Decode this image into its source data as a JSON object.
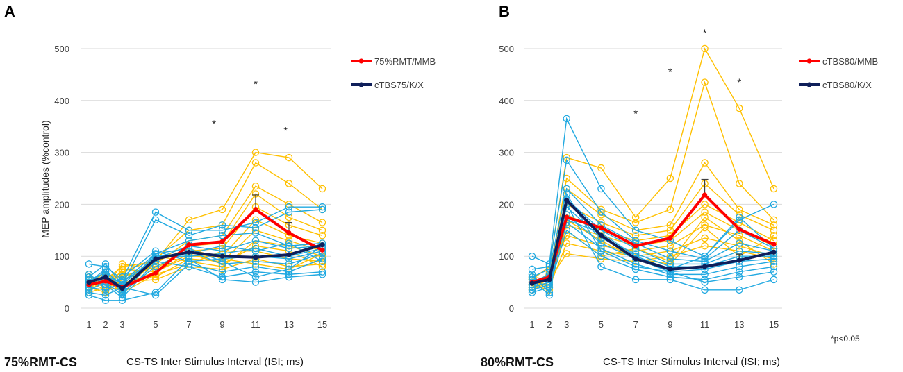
{
  "chart_data": [
    {
      "panel_label": "A",
      "type": "line",
      "ylabel": "MEP amplitudes (%control)",
      "x_title": "CS-TS Inter Stimulus Interval (ISI; ms)",
      "condition_label": "75%RMT-CS",
      "ylim": [
        0,
        500
      ],
      "yticks": [
        "0",
        "100",
        "200",
        "300",
        "400",
        "500"
      ],
      "grid": "horizontal",
      "legend_position": "right",
      "x": [
        1,
        2,
        3,
        5,
        7,
        9,
        11,
        13,
        15
      ],
      "x_tick_labels": [
        "1",
        "2",
        "3",
        "5",
        "7",
        "9",
        "11",
        "13",
        "15"
      ],
      "colors": {
        "mean_a": "#ff0000",
        "mean_b": "#0f1f5a",
        "indiv_a": "#ffc000",
        "indiv_b": "#21a9e1"
      },
      "series": [
        {
          "name": "75%RMT/MMB",
          "role": "mean_a",
          "values": [
            45,
            52,
            40,
            68,
            122,
            128,
            190,
            145,
            112
          ],
          "error": [
            null,
            null,
            null,
            null,
            null,
            null,
            28,
            20,
            null
          ]
        },
        {
          "name": "cTBS75/K/X",
          "role": "mean_b",
          "values": [
            50,
            60,
            38,
            95,
            108,
            100,
            98,
            103,
            122
          ],
          "error": [
            null,
            null,
            null,
            null,
            null,
            null,
            null,
            null,
            null
          ]
        }
      ],
      "individual_series": [
        {
          "group": "a",
          "values": [
            60,
            55,
            80,
            90,
            170,
            190,
            300,
            290,
            230
          ]
        },
        {
          "group": "a",
          "values": [
            45,
            50,
            70,
            95,
            150,
            160,
            280,
            240,
            190
          ]
        },
        {
          "group": "a",
          "values": [
            35,
            65,
            60,
            85,
            130,
            140,
            235,
            200,
            165
          ]
        },
        {
          "group": "a",
          "values": [
            55,
            40,
            85,
            75,
            120,
            125,
            220,
            175,
            150
          ]
        },
        {
          "group": "a",
          "values": [
            40,
            30,
            55,
            80,
            110,
            115,
            195,
            160,
            140
          ]
        },
        {
          "group": "a",
          "values": [
            30,
            60,
            45,
            70,
            100,
            100,
            170,
            140,
            125
          ]
        },
        {
          "group": "a",
          "values": [
            50,
            45,
            65,
            60,
            95,
            90,
            150,
            130,
            110
          ]
        },
        {
          "group": "a",
          "values": [
            65,
            35,
            40,
            100,
            90,
            80,
            130,
            120,
            100
          ]
        },
        {
          "group": "a",
          "values": [
            40,
            55,
            30,
            65,
            85,
            110,
            110,
            95,
            90
          ]
        },
        {
          "group": "a",
          "values": [
            30,
            40,
            50,
            55,
            80,
            75,
            95,
            80,
            85
          ]
        },
        {
          "group": "a",
          "values": [
            45,
            70,
            35,
            90,
            115,
            95,
            85,
            75,
            105
          ]
        },
        {
          "group": "a",
          "values": [
            50,
            35,
            75,
            70,
            105,
            85,
            120,
            110,
            80
          ]
        },
        {
          "group": "b",
          "values": [
            85,
            80,
            55,
            185,
            150,
            150,
            165,
            195,
            195
          ]
        },
        {
          "group": "b",
          "values": [
            60,
            85,
            45,
            170,
            140,
            160,
            155,
            185,
            190
          ]
        },
        {
          "group": "b",
          "values": [
            50,
            75,
            35,
            105,
            130,
            140,
            145,
            120,
            125
          ]
        },
        {
          "group": "b",
          "values": [
            40,
            60,
            50,
            95,
            120,
            110,
            130,
            115,
            120
          ]
        },
        {
          "group": "b",
          "values": [
            35,
            50,
            25,
            100,
            100,
            105,
            115,
            100,
            115
          ]
        },
        {
          "group": "b",
          "values": [
            55,
            40,
            60,
            110,
            90,
            95,
            100,
            95,
            110
          ]
        },
        {
          "group": "b",
          "values": [
            45,
            65,
            30,
            80,
            110,
            85,
            90,
            85,
            105
          ]
        },
        {
          "group": "b",
          "values": [
            30,
            25,
            40,
            25,
            85,
            70,
            80,
            70,
            95
          ]
        },
        {
          "group": "b",
          "values": [
            25,
            15,
            15,
            30,
            95,
            55,
            50,
            60,
            65
          ]
        },
        {
          "group": "b",
          "values": [
            65,
            45,
            20,
            90,
            80,
            60,
            70,
            65,
            70
          ]
        },
        {
          "group": "b",
          "values": [
            50,
            70,
            45,
            100,
            105,
            120,
            110,
            125,
            90
          ]
        },
        {
          "group": "b",
          "values": [
            40,
            35,
            50,
            105,
            115,
            90,
            60,
            75,
            120
          ]
        }
      ],
      "annotations": [
        {
          "text": "*",
          "x": 8.5,
          "y": 355
        },
        {
          "text": "*",
          "x": 11,
          "y": 432
        },
        {
          "text": "*",
          "x": 12.8,
          "y": 342
        }
      ],
      "note": ""
    },
    {
      "panel_label": "B",
      "type": "line",
      "ylabel": "",
      "x_title": "CS-TS Inter Stimulus Interval (ISI; ms)",
      "condition_label": "80%RMT-CS",
      "ylim": [
        0,
        500
      ],
      "yticks": [
        "0",
        "100",
        "200",
        "300",
        "400",
        "500"
      ],
      "grid": "horizontal",
      "legend_position": "right",
      "x": [
        1,
        2,
        3,
        5,
        7,
        9,
        11,
        13,
        15
      ],
      "x_tick_labels": [
        "1",
        "2",
        "3",
        "5",
        "7",
        "9",
        "11",
        "13",
        "15"
      ],
      "colors": {
        "mean_a": "#ff0000",
        "mean_b": "#0f1f5a",
        "indiv_a": "#ffc000",
        "indiv_b": "#21a9e1"
      },
      "series": [
        {
          "name": "cTBS80/MMB",
          "role": "mean_a",
          "values": [
            50,
            60,
            175,
            155,
            120,
            135,
            218,
            152,
            123
          ],
          "error": [
            null,
            null,
            null,
            null,
            null,
            null,
            30,
            null,
            null
          ]
        },
        {
          "name": "cTBS80/K/X",
          "role": "mean_b",
          "values": [
            48,
            55,
            208,
            140,
            95,
            75,
            80,
            92,
            108
          ],
          "error": [
            null,
            null,
            null,
            null,
            null,
            null,
            null,
            12,
            null
          ]
        }
      ],
      "individual_series": [
        {
          "group": "a",
          "values": [
            55,
            80,
            290,
            270,
            175,
            250,
            500,
            385,
            230
          ]
        },
        {
          "group": "a",
          "values": [
            45,
            60,
            250,
            190,
            165,
            190,
            435,
            240,
            170
          ]
        },
        {
          "group": "a",
          "values": [
            40,
            70,
            230,
            180,
            150,
            160,
            280,
            190,
            160
          ]
        },
        {
          "group": "a",
          "values": [
            60,
            55,
            200,
            165,
            140,
            150,
            240,
            180,
            150
          ]
        },
        {
          "group": "a",
          "values": [
            50,
            45,
            180,
            150,
            130,
            140,
            200,
            165,
            130
          ]
        },
        {
          "group": "a",
          "values": [
            35,
            50,
            160,
            140,
            120,
            130,
            185,
            150,
            120
          ]
        },
        {
          "group": "a",
          "values": [
            45,
            65,
            140,
            120,
            110,
            120,
            160,
            140,
            110
          ]
        },
        {
          "group": "a",
          "values": [
            55,
            40,
            125,
            110,
            100,
            110,
            135,
            120,
            100
          ]
        },
        {
          "group": "a",
          "values": [
            40,
            55,
            105,
            95,
            90,
            100,
            120,
            110,
            95
          ]
        },
        {
          "group": "a",
          "values": [
            50,
            60,
            150,
            100,
            115,
            90,
            175,
            130,
            85
          ]
        },
        {
          "group": "a",
          "values": [
            45,
            35,
            170,
            130,
            95,
            85,
            155,
            100,
            140
          ]
        },
        {
          "group": "b",
          "values": [
            100,
            85,
            365,
            230,
            150,
            130,
            100,
            170,
            200
          ]
        },
        {
          "group": "b",
          "values": [
            75,
            80,
            285,
            185,
            130,
            110,
            95,
            150,
            115
          ]
        },
        {
          "group": "b",
          "values": [
            60,
            75,
            230,
            160,
            125,
            95,
            90,
            125,
            110
          ]
        },
        {
          "group": "b",
          "values": [
            50,
            65,
            210,
            150,
            115,
            85,
            85,
            110,
            105
          ]
        },
        {
          "group": "b",
          "values": [
            45,
            55,
            195,
            135,
            105,
            80,
            80,
            100,
            100
          ]
        },
        {
          "group": "b",
          "values": [
            40,
            50,
            180,
            125,
            95,
            70,
            75,
            90,
            95
          ]
        },
        {
          "group": "b",
          "values": [
            35,
            45,
            165,
            115,
            85,
            65,
            65,
            80,
            90
          ]
        },
        {
          "group": "b",
          "values": [
            30,
            40,
            150,
            100,
            75,
            60,
            55,
            70,
            80
          ]
        },
        {
          "group": "b",
          "values": [
            55,
            25,
            200,
            80,
            55,
            55,
            35,
            35,
            55
          ]
        },
        {
          "group": "b",
          "values": [
            65,
            30,
            220,
            110,
            80,
            70,
            50,
            60,
            70
          ]
        },
        {
          "group": "b",
          "values": [
            45,
            60,
            170,
            145,
            100,
            75,
            100,
            175,
            115
          ]
        }
      ],
      "annotations": [
        {
          "text": "*",
          "x": 7,
          "y": 375
        },
        {
          "text": "*",
          "x": 9,
          "y": 455
        },
        {
          "text": "*",
          "x": 11,
          "y": 530
        },
        {
          "text": "*",
          "x": 13,
          "y": 435
        }
      ],
      "note": "*p<0.05"
    }
  ]
}
